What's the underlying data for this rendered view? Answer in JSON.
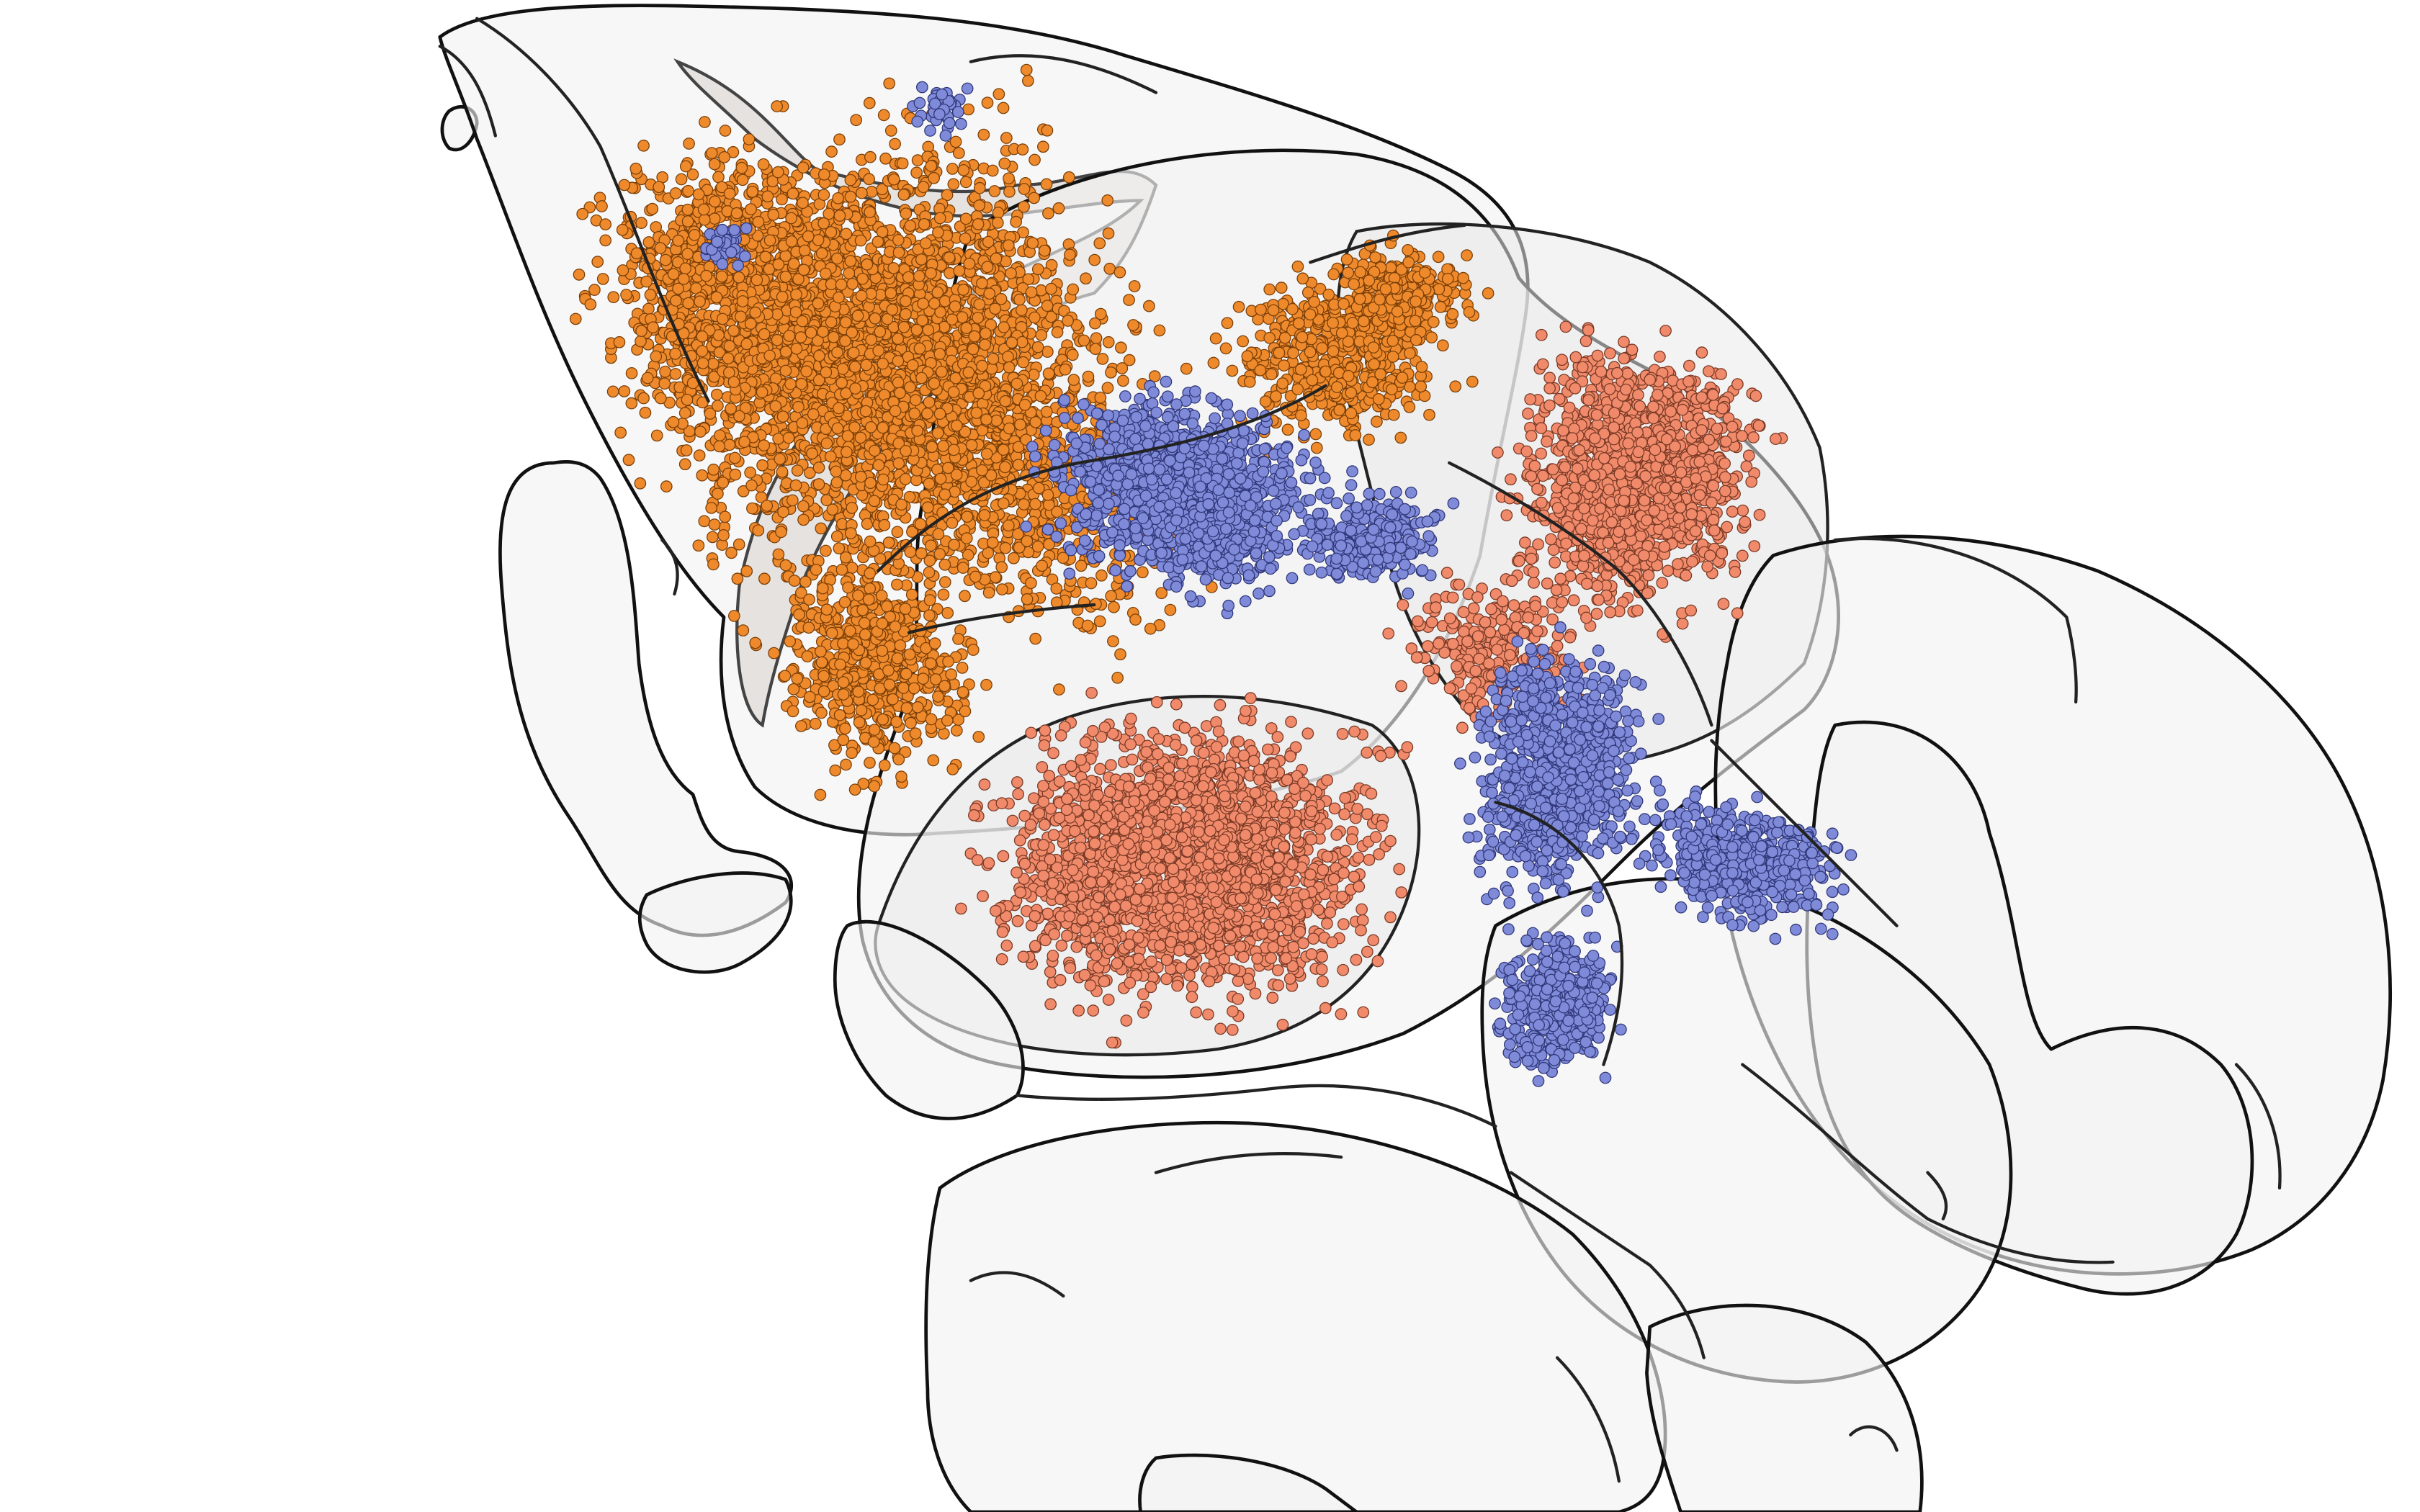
{
  "scene": {
    "background": "#ffffff",
    "outline_color": "#111111",
    "region_fill": "#f2f2f2"
  },
  "cell_populations": [
    {
      "color": "#ef8a2c",
      "stroke": "#7a3f08"
    },
    {
      "color": "#f08a6a",
      "stroke": "#7a3a26"
    },
    {
      "color": "#7f8ad8",
      "stroke": "#30387a"
    }
  ]
}
